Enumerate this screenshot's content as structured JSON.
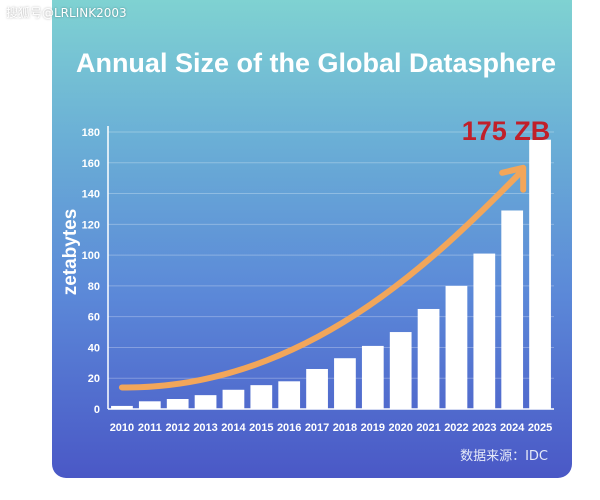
{
  "watermark": "搜狐号@LRLINK2003",
  "source_note": "数据来源：IDC",
  "colors": {
    "bar": "#ffffff",
    "arrow": "#f2a65a",
    "highlight": "#c0202a",
    "text": "#ffffff"
  },
  "chart_data": {
    "type": "bar",
    "title": "Annual Size of the Global Datasphere",
    "xlabel": "",
    "ylabel": "zetabytes",
    "categories": [
      "2010",
      "2011",
      "2012",
      "2013",
      "2014",
      "2015",
      "2016",
      "2017",
      "2018",
      "2019",
      "2020",
      "2021",
      "2022",
      "2023",
      "2024",
      "2025"
    ],
    "values": [
      2,
      5,
      6.5,
      9,
      12.5,
      15.5,
      18,
      26,
      33,
      41,
      50,
      65,
      80,
      101,
      129,
      175
    ],
    "ylim": [
      0,
      180
    ],
    "yticks": [
      0,
      20,
      40,
      60,
      80,
      100,
      120,
      140,
      160,
      180
    ],
    "grid": true,
    "annotation": "175 ZB",
    "trend_arrow": true
  }
}
